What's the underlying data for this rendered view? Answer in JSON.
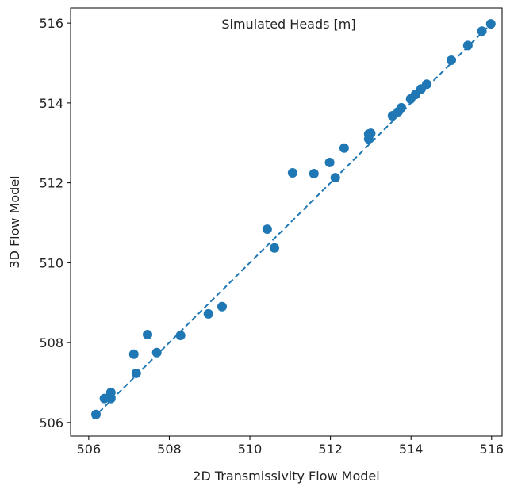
{
  "chart_data": {
    "type": "scatter",
    "title": "Simulated Heads [m]",
    "x_label": "2D Transmissivity Flow Model",
    "y_label": "3D Flow Model",
    "xlim": [
      505.55,
      516.26
    ],
    "ylim": [
      505.66,
      516.38
    ],
    "xticks": [
      506,
      508,
      510,
      512,
      514,
      516
    ],
    "yticks": [
      506,
      508,
      510,
      512,
      514,
      516
    ],
    "color": "#1f77b4",
    "x": [
      506.18,
      506.39,
      506.55,
      506.55,
      507.12,
      507.18,
      507.46,
      507.69,
      508.28,
      508.97,
      509.31,
      510.43,
      510.61,
      511.06,
      511.59,
      511.98,
      512.12,
      512.34,
      512.95,
      512.95,
      513.0,
      513.54,
      513.68,
      513.76,
      513.99,
      514.11,
      514.25,
      514.39,
      515.0,
      515.41,
      515.76,
      515.98
    ],
    "values": [
      506.2,
      506.6,
      506.75,
      506.6,
      507.71,
      507.23,
      508.2,
      507.75,
      508.18,
      508.72,
      508.9,
      510.84,
      510.37,
      512.25,
      512.23,
      512.51,
      512.13,
      512.87,
      513.1,
      513.22,
      513.24,
      513.68,
      513.78,
      513.88,
      514.1,
      514.21,
      514.35,
      514.47,
      515.07,
      515.44,
      515.8,
      515.98
    ],
    "line_x": [
      506.1,
      516.0
    ],
    "line_values": [
      506.1,
      516.0
    ]
  }
}
